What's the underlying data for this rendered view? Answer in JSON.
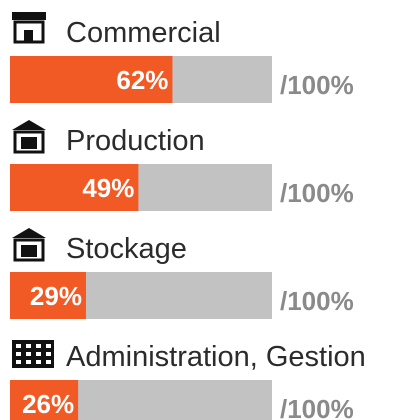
{
  "chart_data": {
    "type": "progress",
    "categories": [
      "Commercial",
      "Production",
      "Stockage",
      "Administration, Gestion"
    ],
    "values": [
      62,
      49,
      29,
      26
    ],
    "value_labels": [
      "62%",
      "49%",
      "29%",
      "26%"
    ],
    "max_label": "/100%",
    "xlim": [
      0,
      100
    ],
    "color": "#f15a24",
    "track_color": "#c2c2c2"
  }
}
